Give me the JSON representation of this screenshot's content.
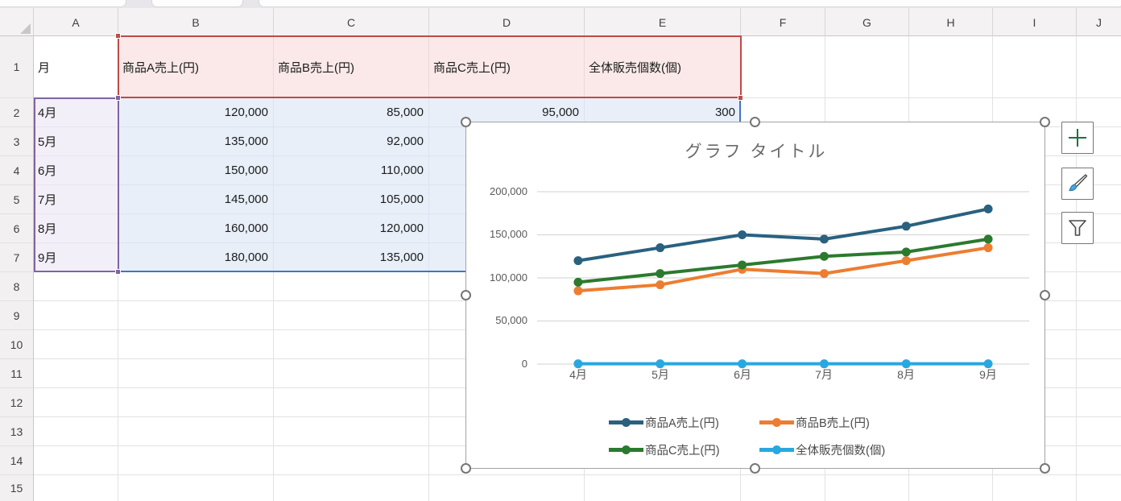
{
  "sheet": {
    "column_headers": [
      "A",
      "B",
      "C",
      "D",
      "E",
      "F",
      "G",
      "H",
      "I",
      "J"
    ],
    "row_numbers": [
      "1",
      "2",
      "3",
      "4",
      "5",
      "6",
      "7",
      "8",
      "9",
      "10",
      "11",
      "12",
      "13",
      "14",
      "15"
    ],
    "cells": {
      "a1": "月",
      "headers": [
        "商品A売上(円)",
        "商品B売上(円)",
        "商品C売上(円)",
        "全体販売個数(個)"
      ],
      "rows": [
        {
          "month": "4月",
          "b": "120,000",
          "c": "85,000",
          "d": "95,000",
          "e": "300"
        },
        {
          "month": "5月",
          "b": "135,000",
          "c": "92,000",
          "d": "",
          "e": ""
        },
        {
          "month": "6月",
          "b": "150,000",
          "c": "110,000",
          "d": "",
          "e": ""
        },
        {
          "month": "7月",
          "b": "145,000",
          "c": "105,000",
          "d": "",
          "e": ""
        },
        {
          "month": "8月",
          "b": "160,000",
          "c": "120,000",
          "d": "",
          "e": ""
        },
        {
          "month": "9月",
          "b": "180,000",
          "c": "135,000",
          "d": "",
          "e": ""
        }
      ]
    },
    "range_colors": {
      "header_fill": "#FBE9E9",
      "header_border": "#BE4B48",
      "month_fill": "#F3EFF9",
      "month_border": "#8064A2",
      "data_fill": "#E8EFF9",
      "data_border": "#4472C4"
    }
  },
  "chart_data": {
    "type": "line",
    "title": "グラフ タイトル",
    "categories": [
      "4月",
      "5月",
      "6月",
      "7月",
      "8月",
      "9月"
    ],
    "series": [
      {
        "name": "商品A売上(円)",
        "color": "#2A617F",
        "values": [
          120000,
          135000,
          150000,
          145000,
          160000,
          180000
        ]
      },
      {
        "name": "商品B売上(円)",
        "color": "#ED7D31",
        "values": [
          85000,
          92000,
          110000,
          105000,
          120000,
          135000
        ]
      },
      {
        "name": "商品C売上(円)",
        "color": "#2B7A2F",
        "values": [
          95000,
          105000,
          115000,
          125000,
          130000,
          145000
        ]
      },
      {
        "name": "全体販売個数(個)",
        "color": "#29A8E0",
        "values": [
          300,
          300,
          300,
          300,
          300,
          300
        ]
      }
    ],
    "ylim": [
      0,
      200000
    ],
    "yticks": [
      0,
      50000,
      100000,
      150000,
      200000
    ],
    "yticklabels": [
      "0",
      "50,000",
      "100,000",
      "150,000",
      "200,000"
    ],
    "xlabel": "",
    "ylabel": "",
    "grid": "horizontal",
    "legend_position": "bottom"
  },
  "chart_buttons": {
    "elements_icon": "plus-icon",
    "styles_icon": "paintbrush-icon",
    "filters_icon": "funnel-icon"
  }
}
